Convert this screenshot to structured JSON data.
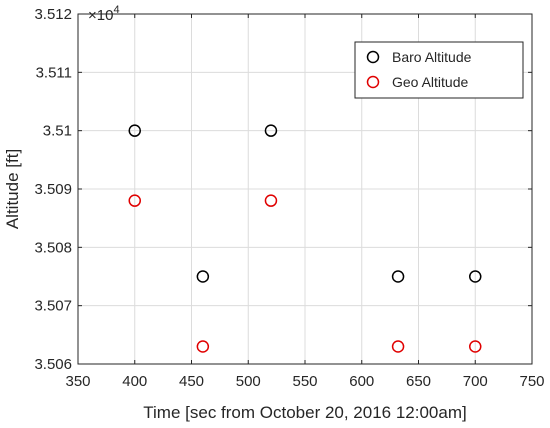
{
  "chart_data": {
    "type": "scatter",
    "title": "",
    "xlabel": "Time [sec from October 20, 2016 12:00am]",
    "ylabel": "Altitude [ft]",
    "xlim": [
      350,
      750
    ],
    "ylim": [
      35060,
      35120
    ],
    "y_exponent_label": "×10",
    "y_exponent_power": "4",
    "x_ticks": [
      350,
      400,
      450,
      500,
      550,
      600,
      650,
      700,
      750
    ],
    "y_ticks": [
      35060,
      35070,
      35080,
      35090,
      35100,
      35110,
      35120
    ],
    "x_tick_labels": [
      "350",
      "400",
      "450",
      "500",
      "550",
      "600",
      "650",
      "700",
      "750"
    ],
    "y_tick_labels": [
      "3.506",
      "3.507",
      "3.508",
      "3.509",
      "3.51",
      "3.511",
      "3.512"
    ],
    "grid": true,
    "legend_position": "top-right",
    "series": [
      {
        "name": "Baro Altitude",
        "color": "#000000",
        "marker": "circle-open",
        "x": [
          400,
          460,
          520,
          632,
          700
        ],
        "y": [
          35100,
          35075,
          35100,
          35075,
          35075
        ]
      },
      {
        "name": "Geo Altitude",
        "color": "#e00000",
        "marker": "circle-open",
        "x": [
          400,
          460,
          520,
          632,
          700
        ],
        "y": [
          35088,
          35063,
          35088,
          35063,
          35063
        ]
      }
    ]
  }
}
